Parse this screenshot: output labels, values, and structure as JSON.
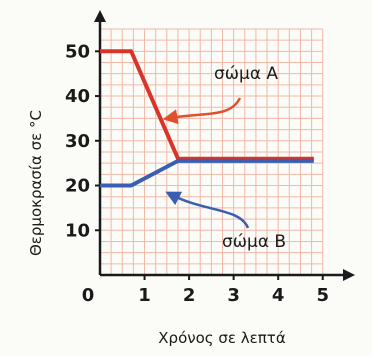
{
  "chart_data": {
    "type": "line",
    "xlabel": "Χρόνος σε λεπτά",
    "ylabel": "Θερμοκρασία σε °C",
    "xlim": [
      0,
      5.5
    ],
    "ylim": [
      0,
      57
    ],
    "xticks": [
      "0",
      "1",
      "2",
      "3",
      "4",
      "5"
    ],
    "yticks": [
      "10",
      "20",
      "30",
      "40",
      "50"
    ],
    "grid": true,
    "series": [
      {
        "name": "σώμα Α",
        "color": "#d9342a",
        "x": [
          0,
          0.7,
          1.75,
          4.8
        ],
        "y": [
          50,
          50,
          26,
          26
        ]
      },
      {
        "name": "σώμα Β",
        "color": "#3a5fb0",
        "x": [
          0,
          0.7,
          1.75,
          4.8
        ],
        "y": [
          20,
          20,
          25.5,
          25.5
        ]
      }
    ],
    "annotations": [
      {
        "text": "σώμα Α",
        "series": 0,
        "color": "#e0502c"
      },
      {
        "text": "σώμα Β",
        "series": 1,
        "color": "#3a5fb0"
      }
    ]
  },
  "colors": {
    "grid": "#f2b8a8",
    "axis": "#1a1a1a",
    "text": "#1a1a1a"
  }
}
